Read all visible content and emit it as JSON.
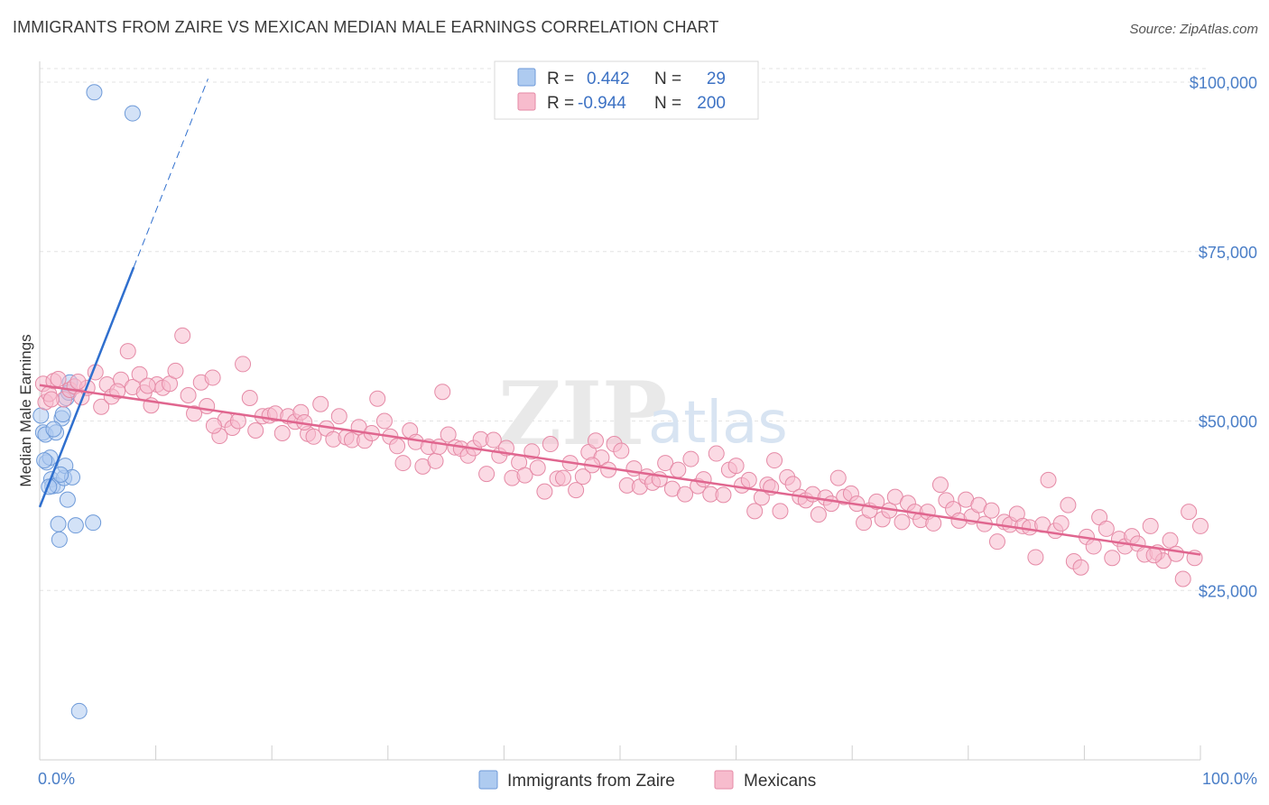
{
  "title": "IMMIGRANTS FROM ZAIRE VS MEXICAN MEDIAN MALE EARNINGS CORRELATION CHART",
  "source": "Source: ZipAtlas.com",
  "watermark": {
    "zip": "ZIP",
    "atlas": "atlas"
  },
  "legend": {
    "r_label": "R =",
    "n_label": "N =",
    "rows": [
      {
        "r": "0.442",
        "n": "29",
        "color": "#aecbf0",
        "border": "#6e9ad8"
      },
      {
        "r": "-0.944",
        "n": "200",
        "color": "#f7bccd",
        "border": "#e58aa6"
      }
    ]
  },
  "bottom_legend": [
    {
      "label": "Immigrants from Zaire",
      "color": "#aecbf0",
      "border": "#6e9ad8"
    },
    {
      "label": "Mexicans",
      "color": "#f7bccd",
      "border": "#e58aa6"
    }
  ],
  "chart_data": {
    "type": "scatter",
    "xlabel": "",
    "ylabel": "Median Male Earnings",
    "xlim": [
      0,
      100
    ],
    "ylim": [
      0,
      102000
    ],
    "x_tick_labels": [
      "0.0%",
      "100.0%"
    ],
    "y_ticks": [
      {
        "value": 25000,
        "label": "$25,000"
      },
      {
        "value": 50000,
        "label": "$50,000"
      },
      {
        "value": 75000,
        "label": "$75,000"
      },
      {
        "value": 100000,
        "label": "$100,000"
      }
    ],
    "grid": true,
    "legend_position": "top-center",
    "series": [
      {
        "name": "Immigrants from Zaire",
        "color": "#aecbf0",
        "stroke": "#6e9ad8",
        "trend_color": "#2f6fce",
        "trend": {
          "x0": 0.0,
          "y0": 37300,
          "x1": 8.1,
          "y1": 72700,
          "dash_x1": 14.5,
          "dash_y1": 100500
        },
        "points": [
          [
            0.1,
            50800
          ],
          [
            0.3,
            48300
          ],
          [
            0.5,
            48000
          ],
          [
            0.6,
            43900
          ],
          [
            0.9,
            44600
          ],
          [
            1.0,
            41400
          ],
          [
            1.1,
            40400
          ],
          [
            1.4,
            48300
          ],
          [
            1.5,
            40500
          ],
          [
            1.6,
            34800
          ],
          [
            1.7,
            32500
          ],
          [
            1.9,
            50400
          ],
          [
            2.0,
            51000
          ],
          [
            2.1,
            41600
          ],
          [
            2.2,
            43400
          ],
          [
            2.3,
            53400
          ],
          [
            2.4,
            38400
          ],
          [
            2.6,
            55700
          ],
          [
            2.8,
            41700
          ],
          [
            3.1,
            34600
          ],
          [
            3.4,
            7200
          ],
          [
            4.6,
            35000
          ],
          [
            4.7,
            98500
          ],
          [
            8.0,
            95400
          ],
          [
            0.8,
            40300
          ],
          [
            1.2,
            48800
          ],
          [
            2.5,
            54200
          ],
          [
            0.4,
            44200
          ],
          [
            1.8,
            42100
          ]
        ]
      },
      {
        "name": "Mexicans",
        "color": "#f7bccd",
        "stroke": "#e58aa6",
        "trend_color": "#e0668f",
        "trend": {
          "x0": 0.0,
          "y0": 55300,
          "x1": 100.0,
          "y1": 30300
        },
        "points": [
          [
            0.3,
            55500
          ],
          [
            0.5,
            52800
          ],
          [
            0.8,
            54000
          ],
          [
            1.2,
            55900
          ],
          [
            1.6,
            56200
          ],
          [
            2.1,
            53200
          ],
          [
            2.6,
            54600
          ],
          [
            3.0,
            55100
          ],
          [
            3.6,
            53500
          ],
          [
            4.1,
            54900
          ],
          [
            4.8,
            57200
          ],
          [
            5.3,
            52100
          ],
          [
            5.8,
            55400
          ],
          [
            6.2,
            53600
          ],
          [
            7.0,
            56100
          ],
          [
            7.6,
            60300
          ],
          [
            8.0,
            55000
          ],
          [
            8.6,
            56900
          ],
          [
            9.0,
            54200
          ],
          [
            9.6,
            52300
          ],
          [
            10.1,
            55400
          ],
          [
            10.6,
            54900
          ],
          [
            11.2,
            55500
          ],
          [
            11.7,
            57400
          ],
          [
            12.3,
            62600
          ],
          [
            12.8,
            53800
          ],
          [
            13.3,
            51100
          ],
          [
            13.9,
            55700
          ],
          [
            14.4,
            52200
          ],
          [
            14.9,
            56400
          ],
          [
            15.5,
            47800
          ],
          [
            16.0,
            50200
          ],
          [
            16.6,
            49000
          ],
          [
            17.1,
            50000
          ],
          [
            17.5,
            58400
          ],
          [
            18.1,
            53400
          ],
          [
            18.6,
            48600
          ],
          [
            19.2,
            50700
          ],
          [
            19.8,
            50800
          ],
          [
            20.3,
            51100
          ],
          [
            20.9,
            48200
          ],
          [
            21.4,
            50700
          ],
          [
            22.0,
            49900
          ],
          [
            22.5,
            51300
          ],
          [
            23.1,
            48100
          ],
          [
            23.6,
            47700
          ],
          [
            24.2,
            52500
          ],
          [
            24.7,
            48900
          ],
          [
            25.3,
            47300
          ],
          [
            25.8,
            50700
          ],
          [
            26.4,
            47600
          ],
          [
            26.9,
            47200
          ],
          [
            27.5,
            49100
          ],
          [
            28.0,
            47100
          ],
          [
            28.6,
            48200
          ],
          [
            29.1,
            53300
          ],
          [
            29.7,
            50000
          ],
          [
            30.2,
            47700
          ],
          [
            30.8,
            46300
          ],
          [
            31.3,
            43800
          ],
          [
            31.9,
            48600
          ],
          [
            32.4,
            46900
          ],
          [
            33.0,
            43300
          ],
          [
            33.5,
            46200
          ],
          [
            34.1,
            44100
          ],
          [
            34.7,
            54300
          ],
          [
            35.2,
            48000
          ],
          [
            35.8,
            46100
          ],
          [
            36.3,
            45900
          ],
          [
            36.9,
            44900
          ],
          [
            37.4,
            46000
          ],
          [
            38.0,
            47300
          ],
          [
            38.5,
            42200
          ],
          [
            39.1,
            47200
          ],
          [
            39.6,
            44900
          ],
          [
            40.2,
            46000
          ],
          [
            40.7,
            41600
          ],
          [
            41.3,
            43900
          ],
          [
            41.8,
            42000
          ],
          [
            42.4,
            45500
          ],
          [
            42.9,
            43100
          ],
          [
            43.5,
            39600
          ],
          [
            44.0,
            46600
          ],
          [
            44.6,
            41500
          ],
          [
            45.1,
            41600
          ],
          [
            45.7,
            43800
          ],
          [
            46.2,
            39800
          ],
          [
            46.8,
            41800
          ],
          [
            47.3,
            45400
          ],
          [
            47.9,
            47100
          ],
          [
            48.4,
            44600
          ],
          [
            49.0,
            42800
          ],
          [
            49.5,
            46600
          ],
          [
            50.1,
            45600
          ],
          [
            50.6,
            40500
          ],
          [
            51.2,
            43000
          ],
          [
            51.7,
            40300
          ],
          [
            52.3,
            41800
          ],
          [
            52.8,
            40900
          ],
          [
            53.4,
            41400
          ],
          [
            53.9,
            43800
          ],
          [
            54.5,
            40000
          ],
          [
            55.0,
            42800
          ],
          [
            55.6,
            39200
          ],
          [
            56.1,
            44400
          ],
          [
            56.7,
            40400
          ],
          [
            57.2,
            41400
          ],
          [
            57.8,
            39200
          ],
          [
            58.3,
            45200
          ],
          [
            58.9,
            39100
          ],
          [
            59.4,
            42800
          ],
          [
            60.0,
            43400
          ],
          [
            60.5,
            40500
          ],
          [
            61.1,
            41300
          ],
          [
            61.6,
            36700
          ],
          [
            62.2,
            38700
          ],
          [
            62.7,
            40600
          ],
          [
            63.3,
            44200
          ],
          [
            63.8,
            36700
          ],
          [
            64.4,
            41700
          ],
          [
            64.9,
            40700
          ],
          [
            65.5,
            38800
          ],
          [
            66.0,
            38300
          ],
          [
            66.6,
            39200
          ],
          [
            67.1,
            36200
          ],
          [
            67.7,
            38700
          ],
          [
            68.2,
            37800
          ],
          [
            68.8,
            41600
          ],
          [
            69.3,
            38800
          ],
          [
            69.9,
            39300
          ],
          [
            70.4,
            37800
          ],
          [
            71.0,
            35000
          ],
          [
            71.5,
            36800
          ],
          [
            72.1,
            38100
          ],
          [
            72.6,
            35500
          ],
          [
            73.2,
            36800
          ],
          [
            73.7,
            38800
          ],
          [
            74.3,
            35100
          ],
          [
            74.8,
            37900
          ],
          [
            75.4,
            36600
          ],
          [
            75.9,
            35400
          ],
          [
            76.5,
            36600
          ],
          [
            77.0,
            34900
          ],
          [
            77.6,
            40600
          ],
          [
            78.1,
            38300
          ],
          [
            78.7,
            37000
          ],
          [
            79.2,
            35300
          ],
          [
            79.8,
            38400
          ],
          [
            80.3,
            35900
          ],
          [
            80.9,
            37600
          ],
          [
            81.4,
            34800
          ],
          [
            82.0,
            36800
          ],
          [
            82.5,
            32200
          ],
          [
            83.1,
            35100
          ],
          [
            83.6,
            34700
          ],
          [
            84.2,
            36300
          ],
          [
            84.7,
            34500
          ],
          [
            85.3,
            34300
          ],
          [
            85.8,
            29900
          ],
          [
            86.4,
            34700
          ],
          [
            86.9,
            41300
          ],
          [
            87.5,
            33800
          ],
          [
            88.0,
            34900
          ],
          [
            88.6,
            37600
          ],
          [
            89.1,
            29300
          ],
          [
            89.7,
            28400
          ],
          [
            90.2,
            32900
          ],
          [
            90.8,
            31500
          ],
          [
            91.3,
            35800
          ],
          [
            91.9,
            34100
          ],
          [
            92.4,
            29800
          ],
          [
            93.0,
            32600
          ],
          [
            93.5,
            31500
          ],
          [
            94.1,
            33000
          ],
          [
            94.6,
            31900
          ],
          [
            95.2,
            30300
          ],
          [
            95.7,
            34500
          ],
          [
            96.3,
            30600
          ],
          [
            96.8,
            29400
          ],
          [
            97.4,
            32400
          ],
          [
            97.9,
            30400
          ],
          [
            98.5,
            26700
          ],
          [
            99.0,
            36600
          ],
          [
            99.5,
            29800
          ],
          [
            100.0,
            34500
          ],
          [
            1.0,
            53200
          ],
          [
            3.3,
            55800
          ],
          [
            6.7,
            54400
          ],
          [
            9.3,
            55200
          ],
          [
            15.0,
            49300
          ],
          [
            22.8,
            49800
          ],
          [
            34.4,
            46200
          ],
          [
            47.6,
            43500
          ],
          [
            63.0,
            40200
          ],
          [
            96.0,
            30200
          ]
        ]
      }
    ]
  }
}
